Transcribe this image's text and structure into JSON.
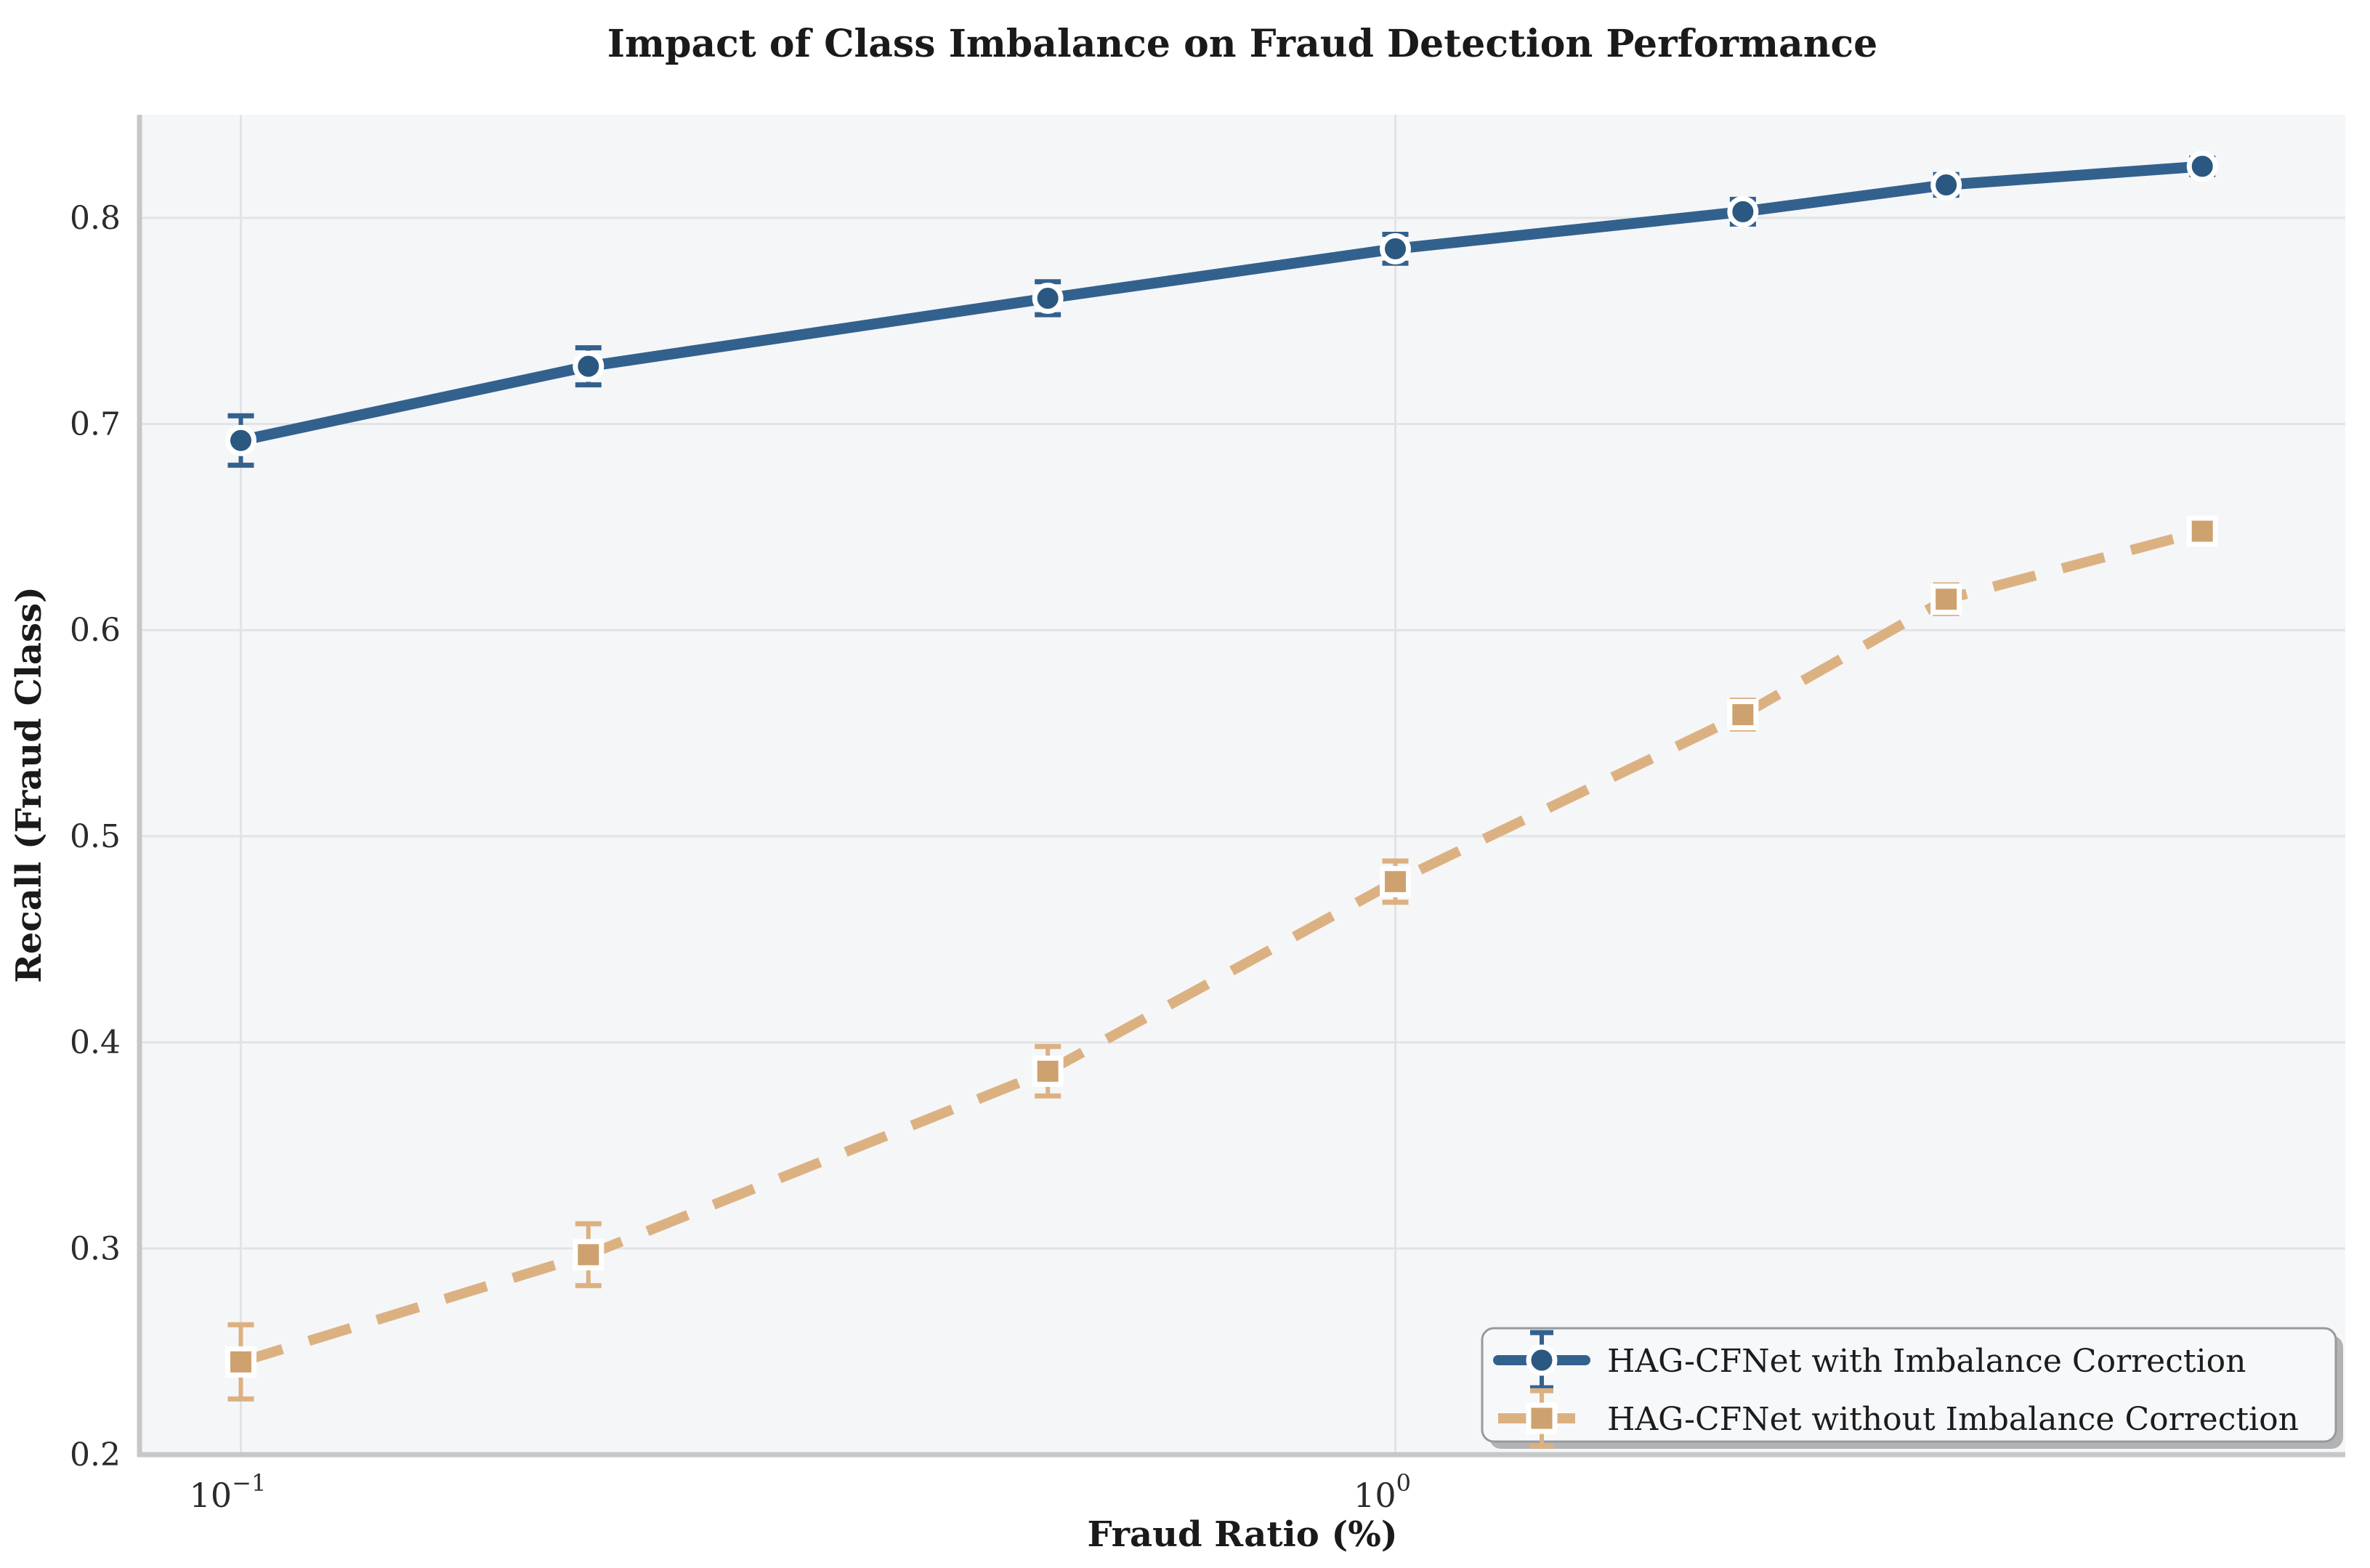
{
  "title": "Impact of Class Imbalance on Fraud Detection Performance",
  "chart_data": {
    "type": "line",
    "title": "Impact of Class Imbalance on Fraud Detection Performance",
    "xlabel": "Fraud Ratio (%)",
    "ylabel": "Recall (Fraud Class)",
    "xscale": "log",
    "xlim": [
      0.0817,
      6.65
    ],
    "ylim": [
      0.2,
      0.85
    ],
    "grid": true,
    "legend_position": "lower right",
    "x": [
      0.1,
      0.2,
      0.5,
      1,
      2,
      3,
      5
    ],
    "x_tick_values": [
      0.1,
      1
    ],
    "x_tick_bases": [
      "10",
      "10"
    ],
    "x_tick_exponents": [
      "−1",
      "0"
    ],
    "y_ticks": [
      0.2,
      0.3,
      0.4,
      0.5,
      0.6,
      0.7,
      0.8
    ],
    "series": [
      {
        "name": "HAG-CFNet with Imbalance Correction",
        "marker": "circle",
        "linestyle": "solid",
        "color": "#33618e",
        "marker_color": "#2a5880",
        "values": [
          0.692,
          0.728,
          0.761,
          0.785,
          0.803,
          0.816,
          0.825
        ],
        "errors": [
          0.012,
          0.009,
          0.008,
          0.007,
          0.006,
          0.005,
          0.004
        ]
      },
      {
        "name": "HAG-CFNet without Imbalance Correction",
        "marker": "square",
        "linestyle": "dashed",
        "color": "#dcb182",
        "marker_color": "#cda26f",
        "values": [
          0.245,
          0.297,
          0.386,
          0.478,
          0.559,
          0.615,
          0.648
        ],
        "errors": [
          0.018,
          0.015,
          0.012,
          0.01,
          0.007,
          0.007,
          0.006
        ]
      }
    ],
    "colors": {
      "figure_bg": "#ffffff",
      "plot_bg": "#f5f6f8",
      "grid": "#e2e3e6",
      "spine": "#c6c7c9",
      "tick_text": "#2b2b2b",
      "legend_bg": "#f7f8fa",
      "legend_border": "#97999c",
      "legend_shadow": "#b3b3b3"
    }
  }
}
